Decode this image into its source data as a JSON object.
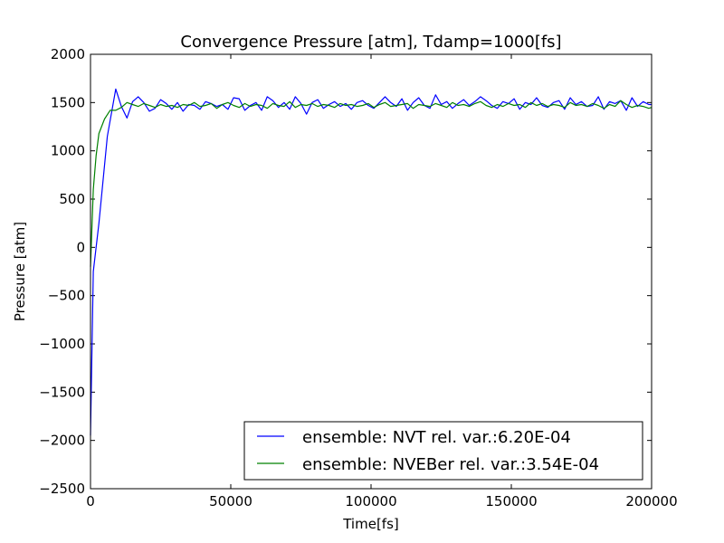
{
  "chart_data": {
    "type": "line",
    "title": "Convergence Pressure [atm], Tdamp=1000[fs]",
    "xlabel": "Time[fs]",
    "ylabel": "Pressure [atm]",
    "xlim": [
      0,
      200000
    ],
    "ylim": [
      -2500,
      2000
    ],
    "x_ticks": [
      0,
      50000,
      100000,
      150000,
      200000
    ],
    "y_ticks": [
      -2500,
      -2000,
      -1500,
      -1000,
      -500,
      0,
      500,
      1000,
      1500,
      2000
    ],
    "legend_position": "lower-right",
    "grid": false,
    "series": [
      {
        "name": "ensemble: NVT rel. var.:6.20E-04",
        "color": "#0000ff",
        "x": [
          0,
          1000,
          3000,
          6000,
          9000,
          11000,
          13000,
          15000,
          17000,
          19000,
          21000,
          23000,
          25000,
          27000,
          29000,
          31000,
          33000,
          35000,
          37000,
          39000,
          41000,
          43000,
          45000,
          47000,
          49000,
          51000,
          53000,
          55000,
          57000,
          59000,
          61000,
          63000,
          65000,
          67000,
          69000,
          71000,
          73000,
          75000,
          77000,
          79000,
          81000,
          83000,
          85000,
          87000,
          89000,
          91000,
          93000,
          95000,
          97000,
          99000,
          101000,
          103000,
          105000,
          107000,
          109000,
          111000,
          113000,
          115000,
          117000,
          119000,
          121000,
          123000,
          125000,
          127000,
          129000,
          131000,
          133000,
          135000,
          137000,
          139000,
          141000,
          143000,
          145000,
          147000,
          149000,
          151000,
          153000,
          155000,
          157000,
          159000,
          161000,
          163000,
          165000,
          167000,
          169000,
          171000,
          173000,
          175000,
          177000,
          179000,
          181000,
          183000,
          185000,
          187000,
          189000,
          191000,
          193000,
          195000,
          197000,
          199000,
          200000
        ],
        "y": [
          -1950,
          -250,
          250,
          1150,
          1640,
          1460,
          1340,
          1510,
          1560,
          1500,
          1410,
          1440,
          1530,
          1490,
          1430,
          1500,
          1410,
          1480,
          1470,
          1430,
          1510,
          1490,
          1460,
          1480,
          1430,
          1550,
          1540,
          1420,
          1470,
          1500,
          1420,
          1560,
          1520,
          1450,
          1500,
          1430,
          1560,
          1490,
          1380,
          1500,
          1530,
          1440,
          1480,
          1510,
          1460,
          1490,
          1430,
          1500,
          1520,
          1470,
          1440,
          1500,
          1560,
          1500,
          1460,
          1540,
          1420,
          1500,
          1550,
          1470,
          1440,
          1580,
          1480,
          1510,
          1440,
          1490,
          1530,
          1470,
          1510,
          1560,
          1520,
          1470,
          1440,
          1510,
          1490,
          1540,
          1430,
          1500,
          1480,
          1550,
          1470,
          1450,
          1500,
          1520,
          1430,
          1550,
          1480,
          1510,
          1460,
          1470,
          1560,
          1430,
          1510,
          1490,
          1520,
          1420,
          1550,
          1460,
          1510,
          1480,
          1480
        ]
      },
      {
        "name": "ensemble: NVEBer rel. var.:3.54E-04",
        "color": "#008000",
        "x": [
          0,
          1000,
          2000,
          3000,
          5000,
          7000,
          9000,
          11000,
          13000,
          15000,
          17000,
          19000,
          21000,
          23000,
          25000,
          27000,
          29000,
          31000,
          33000,
          35000,
          37000,
          39000,
          41000,
          43000,
          45000,
          47000,
          49000,
          51000,
          53000,
          55000,
          57000,
          59000,
          61000,
          63000,
          65000,
          67000,
          69000,
          71000,
          73000,
          75000,
          77000,
          79000,
          81000,
          83000,
          85000,
          87000,
          89000,
          91000,
          93000,
          95000,
          97000,
          99000,
          101000,
          103000,
          105000,
          107000,
          109000,
          111000,
          113000,
          115000,
          117000,
          119000,
          121000,
          123000,
          125000,
          127000,
          129000,
          131000,
          133000,
          135000,
          137000,
          139000,
          141000,
          143000,
          145000,
          147000,
          149000,
          151000,
          153000,
          155000,
          157000,
          159000,
          161000,
          163000,
          165000,
          167000,
          169000,
          171000,
          173000,
          175000,
          177000,
          179000,
          181000,
          183000,
          185000,
          187000,
          189000,
          191000,
          193000,
          195000,
          197000,
          199000,
          200000
        ],
        "y": [
          -200,
          600,
          950,
          1180,
          1330,
          1420,
          1420,
          1450,
          1500,
          1480,
          1460,
          1490,
          1470,
          1450,
          1480,
          1460,
          1470,
          1450,
          1480,
          1470,
          1500,
          1460,
          1470,
          1490,
          1440,
          1480,
          1500,
          1470,
          1450,
          1490,
          1460,
          1480,
          1470,
          1440,
          1490,
          1470,
          1460,
          1510,
          1450,
          1480,
          1470,
          1490,
          1460,
          1480,
          1470,
          1450,
          1490,
          1470,
          1480,
          1460,
          1470,
          1490,
          1450,
          1480,
          1500,
          1460,
          1470,
          1480,
          1490,
          1440,
          1480,
          1470,
          1460,
          1490,
          1470,
          1450,
          1500,
          1470,
          1480,
          1460,
          1490,
          1510,
          1470,
          1450,
          1480,
          1460,
          1490,
          1470,
          1480,
          1450,
          1500,
          1470,
          1490,
          1460,
          1480,
          1470,
          1450,
          1500,
          1470,
          1480,
          1460,
          1490,
          1470,
          1440,
          1480,
          1460,
          1520,
          1480,
          1450,
          1470,
          1460,
          1440,
          1450
        ]
      }
    ]
  }
}
